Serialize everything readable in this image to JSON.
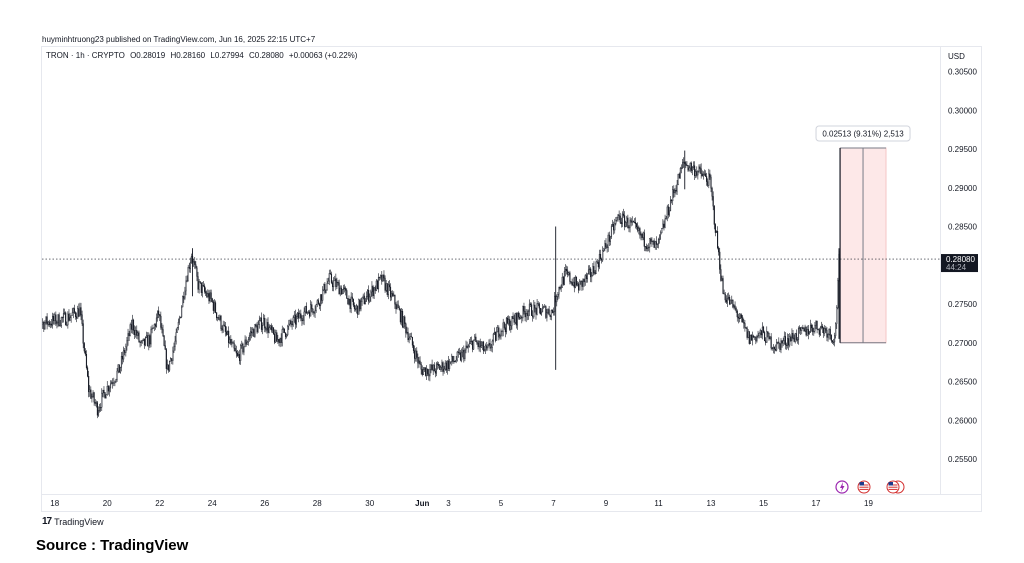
{
  "header": {
    "published_by": "huyminhtruong23 published on TradingView.com, Jun 16, 2025 22:15 UTC+7"
  },
  "legend": {
    "symbol": "TRON · 1h · CRYPTO",
    "open": "O0.28019",
    "high": "H0.28160",
    "low": "L0.27994",
    "close": "C0.28080",
    "change": "+0.00063 (+0.22%)"
  },
  "price_axis": {
    "currency": "USD",
    "ticks": [
      "0.30500",
      "0.30000",
      "0.29500",
      "0.29000",
      "0.28500",
      "0.28000",
      "0.27500",
      "0.27000",
      "0.26500",
      "0.26000",
      "0.25500"
    ],
    "last_price": "0.28080",
    "countdown": "44:24"
  },
  "time_axis": {
    "ticks": [
      "18",
      "20",
      "22",
      "24",
      "26",
      "28",
      "30",
      "Jun",
      "3",
      "5",
      "7",
      "9",
      "11",
      "13",
      "15",
      "17",
      "19"
    ]
  },
  "measure_tool": {
    "label": "0.02513 (9.31%) 2,513",
    "from_price": 0.27,
    "to_price": 0.29513
  },
  "event_icons": [
    "lightning-icon",
    "us-flag-icon",
    "us-flag-icon"
  ],
  "colors": {
    "candles": "#131722",
    "measure_fill": "#fde8e8",
    "measure_stroke": "#787b86",
    "price_label_bg": "#131722",
    "grid_line": "#e6e8ee"
  },
  "branding": {
    "logo_text": "TradingView"
  },
  "footer": {
    "source": "Source : TradingView"
  },
  "chart_data": {
    "type": "candlestick",
    "interval": "1h",
    "ylim": [
      0.251,
      0.3075
    ],
    "x_range": [
      "2025-05-17",
      "2025-06-19"
    ],
    "ohlc_path": [
      [
        "2025-05-17T00:00",
        0.2715
      ],
      [
        "2025-05-17T12:00",
        0.2725
      ],
      [
        "2025-05-18T00:00",
        0.2728
      ],
      [
        "2025-05-18T12:00",
        0.2732
      ],
      [
        "2025-05-19T00:00",
        0.2742
      ],
      [
        "2025-05-19T08:00",
        0.264
      ],
      [
        "2025-05-19T16:00",
        0.2615
      ],
      [
        "2025-05-20T00:00",
        0.264
      ],
      [
        "2025-05-20T12:00",
        0.2665
      ],
      [
        "2025-05-21T00:00",
        0.2725
      ],
      [
        "2025-05-21T08:00",
        0.2695
      ],
      [
        "2025-05-21T16:00",
        0.2705
      ],
      [
        "2025-05-22T00:00",
        0.2738
      ],
      [
        "2025-05-22T08:00",
        0.2665
      ],
      [
        "2025-05-22T16:00",
        0.2705
      ],
      [
        "2025-05-23T00:00",
        0.2775
      ],
      [
        "2025-05-23T06:00",
        0.2815
      ],
      [
        "2025-05-23T12:00",
        0.2775
      ],
      [
        "2025-05-24T00:00",
        0.2755
      ],
      [
        "2025-05-24T12:00",
        0.2715
      ],
      [
        "2025-05-25T00:00",
        0.268
      ],
      [
        "2025-05-25T12:00",
        0.2712
      ],
      [
        "2025-05-26T00:00",
        0.2728
      ],
      [
        "2025-05-26T12:00",
        0.2702
      ],
      [
        "2025-05-27T00:00",
        0.2722
      ],
      [
        "2025-05-27T12:00",
        0.2738
      ],
      [
        "2025-05-28T00:00",
        0.2748
      ],
      [
        "2025-05-28T12:00",
        0.2782
      ],
      [
        "2025-05-29T00:00",
        0.2768
      ],
      [
        "2025-05-29T12:00",
        0.2742
      ],
      [
        "2025-05-30T00:00",
        0.2762
      ],
      [
        "2025-05-30T12:00",
        0.2782
      ],
      [
        "2025-05-31T00:00",
        0.2752
      ],
      [
        "2025-05-31T12:00",
        0.2712
      ],
      [
        "2025-06-01T00:00",
        0.2665
      ],
      [
        "2025-06-01T12:00",
        0.2665
      ],
      [
        "2025-06-02T00:00",
        0.2672
      ],
      [
        "2025-06-02T12:00",
        0.2682
      ],
      [
        "2025-06-03T00:00",
        0.2702
      ],
      [
        "2025-06-03T12:00",
        0.2688
      ],
      [
        "2025-06-04T00:00",
        0.2718
      ],
      [
        "2025-06-04T12:00",
        0.2728
      ],
      [
        "2025-06-05T00:00",
        0.2742
      ],
      [
        "2025-06-05T12:00",
        0.2742
      ],
      [
        "2025-06-06T00:00",
        0.274
      ],
      [
        "2025-06-06T04:00",
        0.2765
      ],
      [
        "2025-06-06T12:00",
        0.2788
      ],
      [
        "2025-06-07T00:00",
        0.2772
      ],
      [
        "2025-06-07T12:00",
        0.279
      ],
      [
        "2025-06-08T00:00",
        0.2822
      ],
      [
        "2025-06-08T12:00",
        0.2862
      ],
      [
        "2025-06-09T00:00",
        0.2852
      ],
      [
        "2025-06-09T12:00",
        0.2832
      ],
      [
        "2025-06-10T00:00",
        0.2822
      ],
      [
        "2025-06-10T12:00",
        0.2882
      ],
      [
        "2025-06-11T00:00",
        0.2932
      ],
      [
        "2025-06-11T12:00",
        0.2922
      ],
      [
        "2025-06-12T00:00",
        0.2908
      ],
      [
        "2025-06-12T12:00",
        0.2765
      ],
      [
        "2025-06-13T00:00",
        0.274
      ],
      [
        "2025-06-13T12:00",
        0.2705
      ],
      [
        "2025-06-14T00:00",
        0.2712
      ],
      [
        "2025-06-14T12:00",
        0.2695
      ],
      [
        "2025-06-15T00:00",
        0.2705
      ],
      [
        "2025-06-15T12:00",
        0.2712
      ],
      [
        "2025-06-16T00:00",
        0.2722
      ],
      [
        "2025-06-16T12:00",
        0.2715
      ],
      [
        "2025-06-16T18:00",
        0.2705
      ],
      [
        "2025-06-16T21:00",
        0.2772
      ],
      [
        "2025-06-16T22:00",
        0.2808
      ]
    ],
    "spikes": [
      {
        "t": "2025-05-23T06:00",
        "high": 0.2822,
        "low": 0.276
      },
      {
        "t": "2025-06-06T02:00",
        "high": 0.285,
        "low": 0.2665
      },
      {
        "t": "2025-06-11T00:00",
        "high": 0.2948,
        "low": 0.2898
      },
      {
        "t": "2025-06-16T21:00",
        "high": 0.2822,
        "low": 0.2705
      }
    ],
    "last_price": 0.2808
  }
}
